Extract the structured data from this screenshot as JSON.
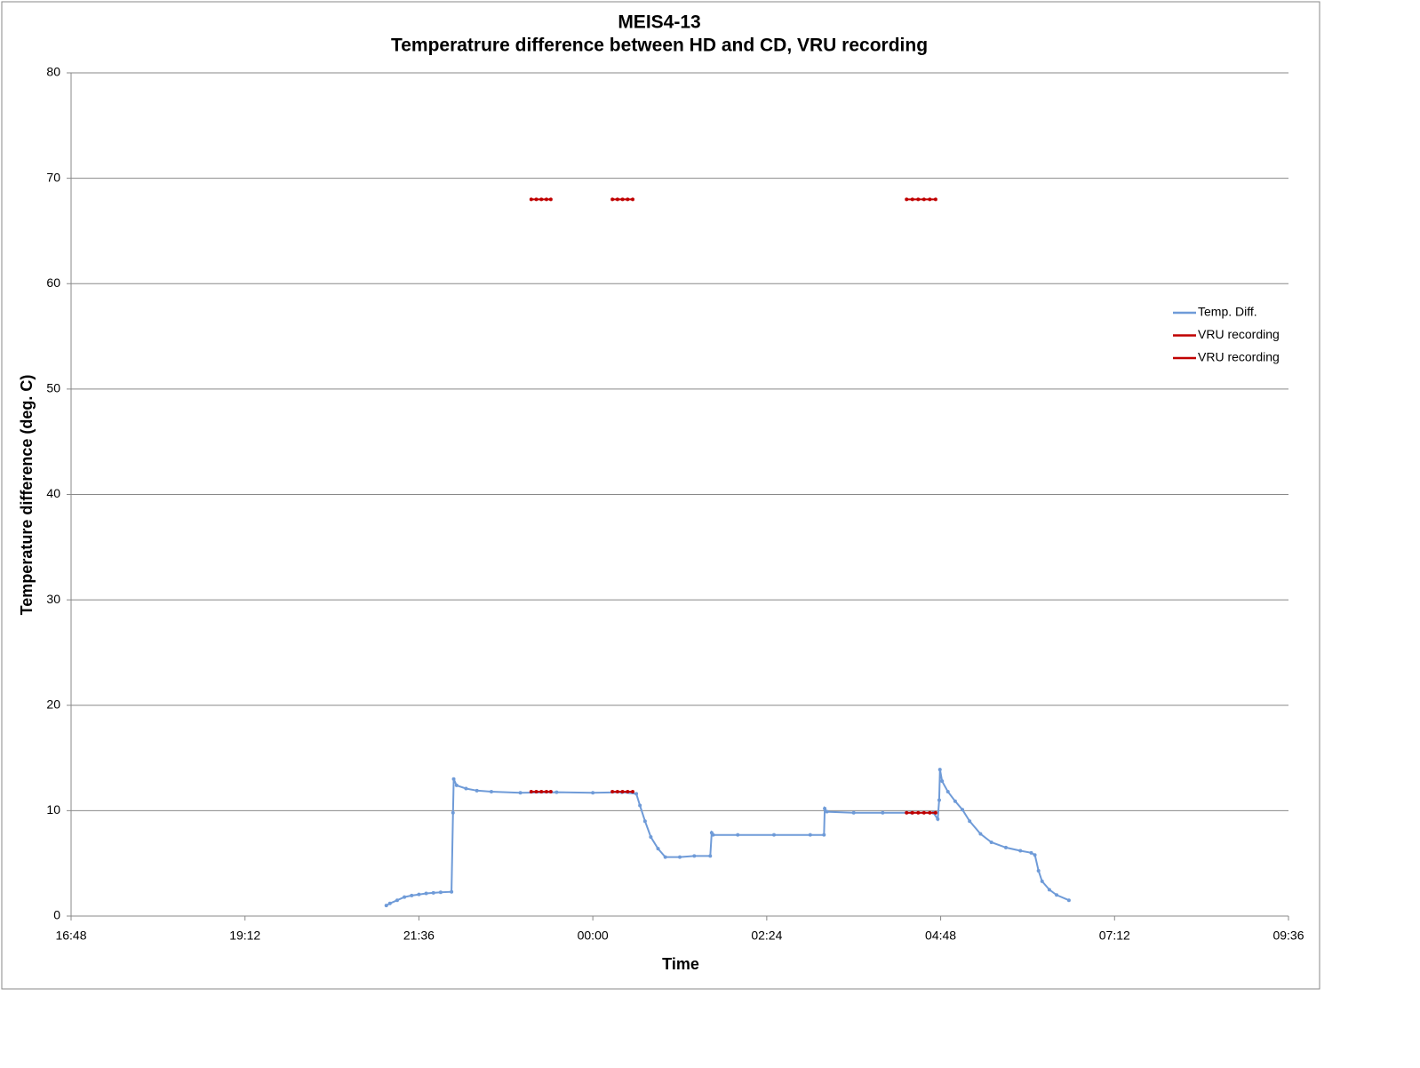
{
  "chart_data": {
    "type": "line",
    "title": "MEIS4-13",
    "subtitle": "Temperatrure difference between HD and CD, VRU recording",
    "x_label": "Time",
    "y_label": "Temperature difference (deg. C)",
    "xlim": [
      16.8,
      33.6
    ],
    "xticks": [
      {
        "value": 16.8,
        "label": "16:48"
      },
      {
        "value": 19.2,
        "label": "19:12"
      },
      {
        "value": 21.6,
        "label": "21:36"
      },
      {
        "value": 24,
        "label": "00:00"
      },
      {
        "value": 26.4,
        "label": "02:24"
      },
      {
        "value": 28.8,
        "label": "04:48"
      },
      {
        "value": 31.2,
        "label": "07:12"
      },
      {
        "value": 33.6,
        "label": "09:36"
      }
    ],
    "ylim": [
      0,
      80
    ],
    "yticks": [
      0,
      10,
      20,
      30,
      40,
      50,
      60,
      70,
      80
    ],
    "grid": true,
    "legend": "right",
    "series": [
      {
        "name": "Temp. Diff.",
        "color": "#6f9bd8",
        "x": [
          21.15,
          21.2,
          21.3,
          21.4,
          21.5,
          21.6,
          21.7,
          21.8,
          21.9,
          22.05,
          22.07,
          22.08,
          22.12,
          22.25,
          22.4,
          22.6,
          23.0,
          23.5,
          24.0,
          24.4,
          24.6,
          24.65,
          24.72,
          24.8,
          24.9,
          25.0,
          25.2,
          25.4,
          25.62,
          25.64,
          25.66,
          26.0,
          26.5,
          27.0,
          27.19,
          27.2,
          27.23,
          27.6,
          28.0,
          28.4,
          28.7,
          28.76,
          28.78,
          28.79,
          28.82,
          28.9,
          29.0,
          29.1,
          29.2,
          29.35,
          29.5,
          29.7,
          29.9,
          30.05,
          30.1,
          30.15,
          30.2,
          30.3,
          30.4,
          30.57
        ],
        "values": [
          1.0,
          1.2,
          1.5,
          1.8,
          1.95,
          2.05,
          2.15,
          2.2,
          2.25,
          2.3,
          9.8,
          13.0,
          12.4,
          12.1,
          11.9,
          11.8,
          11.7,
          11.75,
          11.7,
          11.75,
          11.6,
          10.5,
          9.0,
          7.5,
          6.4,
          5.6,
          5.6,
          5.7,
          5.7,
          7.9,
          7.7,
          7.7,
          7.7,
          7.7,
          7.7,
          10.2,
          9.9,
          9.8,
          9.8,
          9.8,
          9.8,
          9.2,
          11.0,
          13.9,
          12.8,
          11.8,
          10.9,
          10.1,
          9.0,
          7.8,
          7.0,
          6.5,
          6.2,
          6.0,
          5.8,
          4.3,
          3.3,
          2.5,
          2.0,
          1.5
        ]
      },
      {
        "name": "VRU recording",
        "color": "#c00000",
        "x": [
          23.15,
          23.22,
          23.29,
          23.36,
          23.42,
          23.8,
          24.27,
          24.34,
          24.41,
          24.48,
          24.55,
          26.5,
          28.33,
          28.41,
          28.49,
          28.57,
          28.65,
          28.73
        ],
        "values": [
          68,
          68,
          68,
          68,
          68,
          null,
          68,
          68,
          68,
          68,
          68,
          null,
          68,
          68,
          68,
          68,
          68,
          68
        ]
      },
      {
        "name": "VRU recording",
        "color": "#c00000",
        "x": [
          23.15,
          23.22,
          23.29,
          23.36,
          23.42,
          23.8,
          24.27,
          24.34,
          24.41,
          24.48,
          24.55,
          26.5,
          28.33,
          28.41,
          28.49,
          28.57,
          28.65,
          28.73
        ],
        "values": [
          11.8,
          11.8,
          11.8,
          11.8,
          11.8,
          null,
          11.8,
          11.8,
          11.8,
          11.8,
          11.8,
          null,
          9.8,
          9.8,
          9.8,
          9.8,
          9.8,
          9.8
        ]
      }
    ]
  }
}
